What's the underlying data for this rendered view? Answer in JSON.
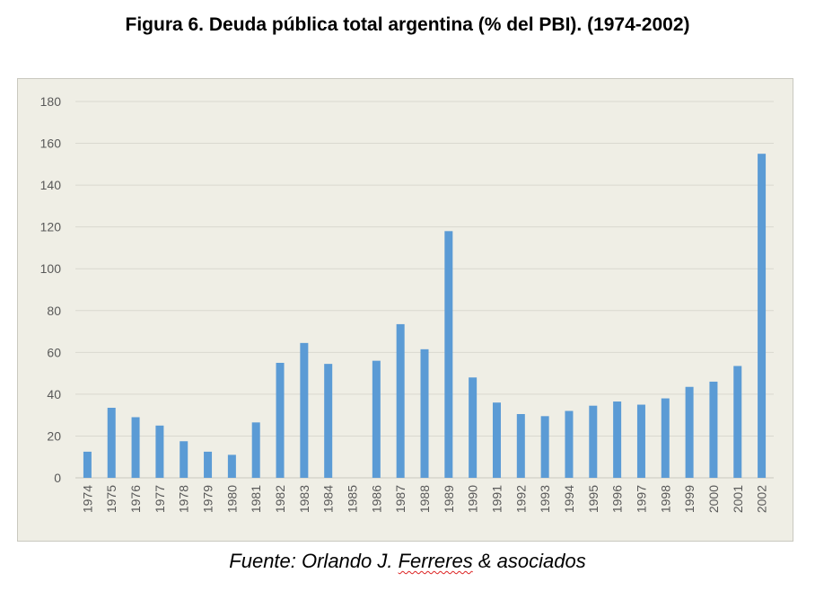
{
  "title": "Figura 6. Deuda pública total argentina (% del PBI). (1974-2002)",
  "source": {
    "prefix": "Fuente: Orlando J. ",
    "underlined": "Ferreres",
    "suffix": " & asociados"
  },
  "colors": {
    "bar": "#5b9bd5",
    "grid": "#d9d8cf",
    "background": "#efeee5"
  },
  "chart_data": {
    "type": "bar",
    "title": "",
    "xlabel": "",
    "ylabel": "",
    "ylim": [
      0,
      180
    ],
    "yticks": [
      0,
      20,
      40,
      60,
      80,
      100,
      120,
      140,
      160,
      180
    ],
    "grid": true,
    "categories": [
      "1974",
      "1975",
      "1976",
      "1977",
      "1978",
      "1979",
      "1980",
      "1981",
      "1982",
      "1983",
      "1984",
      "1985",
      "1986",
      "1987",
      "1988",
      "1989",
      "1990",
      "1991",
      "1992",
      "1993",
      "1994",
      "1995",
      "1996",
      "1997",
      "1998",
      "1999",
      "2000",
      "2001",
      "2002"
    ],
    "values": [
      12.5,
      33.5,
      29,
      25,
      17.5,
      12.5,
      11,
      26.5,
      55,
      64.5,
      54.5,
      0,
      56,
      73.5,
      61.5,
      118,
      48,
      36,
      30.5,
      29.5,
      32,
      34.5,
      36.5,
      35,
      38,
      43.5,
      46,
      53.5,
      155
    ]
  }
}
